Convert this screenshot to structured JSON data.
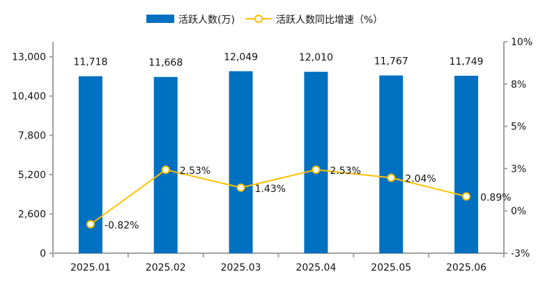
{
  "chart_data": {
    "type": "bar+line",
    "title": "",
    "categories": [
      "2025.01",
      "2025.02",
      "2025.03",
      "2025.04",
      "2025.05",
      "2025.06"
    ],
    "series": [
      {
        "name": "活跃人数(万)",
        "type": "bar",
        "axis": "left",
        "color": "#0070C0",
        "values": [
          11718,
          11668,
          12049,
          12010,
          11767,
          11749
        ],
        "labels": [
          "11,718",
          "11,668",
          "12,049",
          "12,010",
          "11,767",
          "11,749"
        ]
      },
      {
        "name": "活跃人数同比增速（%）",
        "type": "line",
        "axis": "right",
        "color": "#FFC000",
        "values": [
          -0.82,
          2.53,
          1.43,
          2.53,
          2.04,
          0.89
        ],
        "labels": [
          "-0.82%",
          "2.53%",
          "1.43%",
          "2.53%",
          "2.04%",
          "0.89%"
        ]
      }
    ],
    "left_axis": {
      "range": [
        0,
        14000
      ],
      "ticks": [
        0,
        2600,
        5200,
        7800,
        10400,
        13000
      ],
      "tick_labels": [
        "0",
        "2,600",
        "5,200",
        "7,800",
        "10,400",
        "13,000"
      ]
    },
    "right_axis": {
      "range": [
        -2.6,
        10.4
      ],
      "ticks": [
        -2.6,
        0,
        2.6,
        5.2,
        7.8,
        10.4
      ],
      "tick_labels": [
        "-3%",
        "0%",
        "3%",
        "5%",
        "8%",
        "10%"
      ]
    },
    "grid": false,
    "legend_position": "top",
    "axis_color": "#A0A0A0"
  }
}
